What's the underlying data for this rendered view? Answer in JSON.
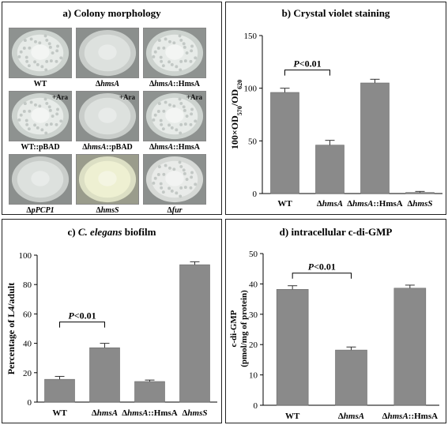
{
  "panel_a": {
    "letter": "a)",
    "title": "Colony morphology",
    "tiles": [
      {
        "delta": "",
        "italic": "",
        "suffix": "WT",
        "ara": "",
        "style": "wrinkled"
      },
      {
        "delta": "Δ",
        "italic": "hmsA",
        "suffix": "",
        "ara": "",
        "style": "smooth"
      },
      {
        "delta": "Δ",
        "italic": "hmsA",
        "suffix": "::HmsA",
        "ara": "",
        "style": "wrinkled"
      },
      {
        "delta": "",
        "italic": "",
        "suffix": "WT::pBAD",
        "ara": "+Ara",
        "style": "wrinkled"
      },
      {
        "delta": "Δ",
        "italic": "hmsA",
        "suffix": "::pBAD",
        "ara": "+Ara",
        "style": "smooth"
      },
      {
        "delta": "Δ",
        "italic": "hmsA",
        "suffix": "::HmsA",
        "ara": "+Ara",
        "style": "wrinkled"
      },
      {
        "delta": "Δ",
        "italic": "pPCP1",
        "suffix": "",
        "ara": "",
        "style": "smooth"
      },
      {
        "delta": "Δ",
        "italic": "hmsS",
        "suffix": "",
        "ara": "",
        "style": "yellow"
      },
      {
        "delta": "Δ",
        "italic": "fur",
        "suffix": "",
        "ara": "",
        "style": "clumpy"
      }
    ]
  },
  "colors": {
    "bar": "#8a8a8a",
    "bar_edge": "#6a6a6a"
  },
  "chart_data": [
    {
      "id": "b",
      "type": "bar",
      "letter": "b)",
      "title": "Crystal violet staining",
      "ylabel_parts": [
        "100×OD",
        "570",
        "/OD",
        "620"
      ],
      "ylim": [
        0,
        150
      ],
      "yticks": [
        0,
        50,
        100,
        150
      ],
      "categories": [
        {
          "delta": "",
          "italic": "",
          "suffix": "WT"
        },
        {
          "delta": "Δ",
          "italic": "hmsA",
          "suffix": ""
        },
        {
          "delta": "Δ",
          "italic": "hmsA",
          "suffix": "::HmsA"
        },
        {
          "delta": "Δ",
          "italic": "hmsS",
          "suffix": ""
        }
      ],
      "values": [
        96,
        46,
        105,
        1
      ],
      "errors": [
        4,
        4.5,
        3.5,
        1
      ],
      "significance": {
        "from": 0,
        "to": 1,
        "label_p": "P",
        "label_rest": "<0.01"
      }
    },
    {
      "id": "c",
      "type": "bar",
      "letter": "c)",
      "title_italic": "C. elegans",
      "title": "biofilm",
      "ylabel": "Percentage of L4/adult",
      "ylim": [
        0,
        100
      ],
      "yticks": [
        0,
        20,
        40,
        60,
        80,
        100
      ],
      "categories": [
        {
          "delta": "",
          "italic": "",
          "suffix": "WT"
        },
        {
          "delta": "Δ",
          "italic": "hmsA",
          "suffix": ""
        },
        {
          "delta": "Δ",
          "italic": "hmsA",
          "suffix": "::HmsA"
        },
        {
          "delta": "Δ",
          "italic": "hmsS",
          "suffix": ""
        }
      ],
      "values": [
        15.5,
        37,
        14,
        93.5
      ],
      "errors": [
        2,
        3,
        1,
        2
      ],
      "significance": {
        "from": 0,
        "to": 1,
        "label_p": "P",
        "label_rest": "<0.01"
      }
    },
    {
      "id": "d",
      "type": "bar",
      "letter": "d)",
      "title": "intracellular c-di-GMP",
      "ylabel": "c-di-GMP",
      "ylabel2": "(pmol/mg of protein)",
      "ylim": [
        0,
        50
      ],
      "yticks": [
        0,
        10,
        20,
        30,
        40,
        50
      ],
      "categories": [
        {
          "delta": "",
          "italic": "",
          "suffix": "WT"
        },
        {
          "delta": "Δ",
          "italic": "hmsA",
          "suffix": ""
        },
        {
          "delta": "Δ",
          "italic": "hmsA",
          "suffix": "::HmsA"
        }
      ],
      "values": [
        38.2,
        18.2,
        38.6
      ],
      "errors": [
        1.2,
        1,
        1
      ],
      "significance": {
        "from": 0,
        "to": 1,
        "label_p": "P",
        "label_rest": "<0.01"
      }
    }
  ]
}
